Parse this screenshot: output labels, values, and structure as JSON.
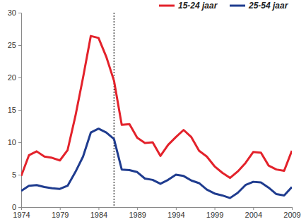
{
  "chart_data": {
    "type": "line",
    "x": [
      1974,
      1975,
      1976,
      1977,
      1978,
      1979,
      1980,
      1981,
      1982,
      1983,
      1984,
      1985,
      1986,
      1987,
      1988,
      1989,
      1990,
      1991,
      1992,
      1993,
      1994,
      1995,
      1996,
      1997,
      1998,
      1999,
      2000,
      2001,
      2002,
      2003,
      2004,
      2005,
      2006,
      2007,
      2008,
      2009
    ],
    "series": [
      {
        "name": "15-24 jaar",
        "color": "#e3222b",
        "values": [
          4.8,
          8.0,
          8.6,
          7.8,
          7.6,
          7.2,
          8.8,
          14.0,
          20.0,
          26.4,
          26.1,
          23.2,
          19.5,
          12.7,
          12.8,
          10.7,
          9.9,
          10.0,
          7.9,
          9.6,
          10.8,
          11.9,
          10.8,
          8.7,
          7.8,
          6.3,
          5.3,
          4.5,
          5.5,
          6.8,
          8.5,
          8.4,
          6.4,
          5.8,
          5.6,
          8.7
        ]
      },
      {
        "name": "25-54 jaar",
        "color": "#1f3c8f",
        "values": [
          2.5,
          3.3,
          3.4,
          3.1,
          2.9,
          2.8,
          3.3,
          5.4,
          7.8,
          11.5,
          12.1,
          11.5,
          10.5,
          5.8,
          5.7,
          5.4,
          4.4,
          4.2,
          3.6,
          4.2,
          5.0,
          4.8,
          4.1,
          3.7,
          2.7,
          2.1,
          1.8,
          1.4,
          2.2,
          3.4,
          3.9,
          3.8,
          3.0,
          2.0,
          1.8,
          3.1
        ]
      }
    ],
    "xlim": [
      1974,
      2009
    ],
    "xticks": [
      1974,
      1979,
      1984,
      1989,
      1994,
      1999,
      2004,
      2009
    ],
    "ylim": [
      0,
      30
    ],
    "yticks": [
      0,
      5,
      10,
      15,
      20,
      25,
      30
    ],
    "reference_x": 1986,
    "grid": false,
    "legend": "top-right"
  }
}
